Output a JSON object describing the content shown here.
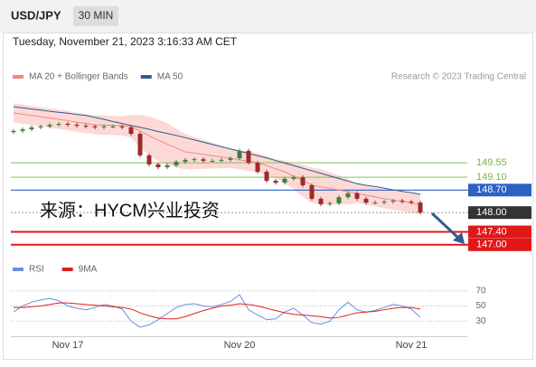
{
  "chart_data": [
    {
      "type": "candlestick",
      "title": "USD/JPY",
      "timeframe": "30 MIN",
      "subtitle": "Tuesday, November 21, 2023 3:16:33 AM CET",
      "credit": "Research © 2023 Trading Central",
      "annotation": "来源：HYCM兴业投资",
      "up_color": "#3f7f3f",
      "down_color": "#9c2a2a",
      "open": [
        150.5,
        150.54,
        150.59,
        150.65,
        150.68,
        150.73,
        150.76,
        150.73,
        150.7,
        150.68,
        150.65,
        150.68,
        150.68,
        150.65,
        150.45,
        149.78,
        149.5,
        149.41,
        149.47,
        149.58,
        149.64,
        149.66,
        149.61,
        149.61,
        149.64,
        149.69,
        149.92,
        149.55,
        149.27,
        148.99,
        148.93,
        149.05,
        149.1,
        148.85,
        148.43,
        148.26,
        148.29,
        148.48,
        148.6,
        148.43,
        148.31,
        148.31,
        148.34,
        148.37,
        148.34,
        148.31
      ],
      "high": [
        150.6,
        150.65,
        150.71,
        150.74,
        150.79,
        150.82,
        150.82,
        150.79,
        150.76,
        150.74,
        150.74,
        150.74,
        150.74,
        150.71,
        150.51,
        149.84,
        149.56,
        149.53,
        149.64,
        149.7,
        149.72,
        149.72,
        149.67,
        149.7,
        149.75,
        149.98,
        149.98,
        149.61,
        149.33,
        149.05,
        149.11,
        149.16,
        149.16,
        148.91,
        148.49,
        148.35,
        148.54,
        148.66,
        148.66,
        148.49,
        148.37,
        148.4,
        148.43,
        148.43,
        148.4,
        148.37
      ],
      "low": [
        150.44,
        150.48,
        150.53,
        150.59,
        150.62,
        150.67,
        150.67,
        150.64,
        150.62,
        150.59,
        150.59,
        150.62,
        150.59,
        150.39,
        149.72,
        149.44,
        149.35,
        149.35,
        149.41,
        149.52,
        149.58,
        149.55,
        149.55,
        149.55,
        149.58,
        149.63,
        149.49,
        149.21,
        148.93,
        148.87,
        148.87,
        148.99,
        148.79,
        148.37,
        148.2,
        148.2,
        148.23,
        148.42,
        148.37,
        148.25,
        148.25,
        148.25,
        148.28,
        148.28,
        148.25,
        147.94
      ],
      "close": [
        150.54,
        150.59,
        150.65,
        150.68,
        150.73,
        150.76,
        150.73,
        150.7,
        150.68,
        150.65,
        150.68,
        150.68,
        150.65,
        150.45,
        149.78,
        149.5,
        149.41,
        149.47,
        149.58,
        149.64,
        149.66,
        149.61,
        149.61,
        149.64,
        149.69,
        149.92,
        149.55,
        149.27,
        148.99,
        148.93,
        149.05,
        149.1,
        148.85,
        148.43,
        148.26,
        148.29,
        148.48,
        148.6,
        148.43,
        148.31,
        148.31,
        148.34,
        148.37,
        148.34,
        148.31,
        148.0
      ],
      "overlays": [
        {
          "name": "MA 20 + Bollinger Bands",
          "color": "#f08a80",
          "band_color": "#fcd9d6",
          "values": [
            151.1,
            151.06,
            151.02,
            150.98,
            150.94,
            150.9,
            150.86,
            150.81,
            150.77,
            150.73,
            150.72,
            150.71,
            150.7,
            150.68,
            150.54,
            150.39,
            150.25,
            150.13,
            150.01,
            149.89,
            149.85,
            149.81,
            149.77,
            149.73,
            149.69,
            149.64,
            149.6,
            149.55,
            149.46,
            149.36,
            149.27,
            149.13,
            148.99,
            148.85,
            148.8,
            148.75,
            148.7,
            148.65,
            148.6,
            148.54,
            148.49,
            148.43,
            148.39,
            148.35,
            148.3,
            148.26
          ],
          "upper": [
            151.4,
            151.36,
            151.32,
            151.28,
            151.24,
            151.2,
            151.16,
            151.11,
            151.07,
            151.03,
            151.02,
            151.01,
            151.0,
            151.03,
            151.04,
            150.99,
            150.9,
            150.78,
            150.61,
            150.44,
            150.35,
            150.26,
            150.17,
            150.08,
            149.99,
            149.94,
            149.9,
            149.85,
            149.76,
            149.66,
            149.62,
            149.53,
            149.49,
            149.4,
            149.35,
            149.25,
            149.15,
            149.05,
            148.9,
            148.84,
            148.79,
            148.73,
            148.69,
            148.65,
            148.6,
            148.56
          ],
          "lower": [
            150.8,
            150.76,
            150.72,
            150.68,
            150.64,
            150.6,
            150.56,
            150.51,
            150.47,
            150.43,
            150.42,
            150.41,
            150.4,
            150.33,
            150.04,
            149.79,
            149.6,
            149.48,
            149.41,
            149.34,
            149.35,
            149.36,
            149.37,
            149.38,
            149.39,
            149.34,
            149.3,
            149.25,
            149.16,
            149.06,
            148.92,
            148.73,
            148.49,
            148.3,
            148.25,
            148.25,
            148.25,
            148.25,
            148.3,
            148.24,
            148.19,
            148.13,
            148.09,
            148.05,
            148.0,
            147.96
          ]
        },
        {
          "name": "MA 50",
          "color": "#2f5b8e",
          "values": [
            151.29,
            151.26,
            151.22,
            151.19,
            151.15,
            151.12,
            151.09,
            151.05,
            151.02,
            150.96,
            150.9,
            150.83,
            150.77,
            150.71,
            150.65,
            150.59,
            150.52,
            150.46,
            150.4,
            150.33,
            150.26,
            150.19,
            150.12,
            150.05,
            149.98,
            149.91,
            149.84,
            149.77,
            149.7,
            149.62,
            149.54,
            149.46,
            149.38,
            149.3,
            149.22,
            149.14,
            149.06,
            148.98,
            148.9,
            148.85,
            148.81,
            148.76,
            148.71,
            148.66,
            148.62,
            148.57
          ]
        }
      ],
      "ylim": [
        146.6,
        151.8
      ],
      "levels": [
        {
          "value": 149.55,
          "label": "149.55",
          "color": "#7ab648",
          "boxed": false,
          "line": "solid",
          "width": 0.8
        },
        {
          "value": 149.1,
          "label": "149.10",
          "color": "#7ab648",
          "boxed": false,
          "line": "solid",
          "width": 0.8
        },
        {
          "value": 148.7,
          "label": "148.70",
          "color": "#2b62c4",
          "boxed": true,
          "line": "solid",
          "width": 1.2
        },
        {
          "value": 148.0,
          "label": "148.00",
          "color": "#333333",
          "boxed": true,
          "line": "dashed",
          "width": 0.8
        },
        {
          "value": 147.4,
          "label": "147.40",
          "color": "#e01818",
          "boxed": true,
          "line": "solid",
          "width": 2
        },
        {
          "value": 147.0,
          "label": "147.00",
          "color": "#e01818",
          "boxed": true,
          "line": "solid",
          "width": 2
        }
      ]
    },
    {
      "type": "line",
      "categories": [
        null,
        null,
        null,
        null,
        null,
        null,
        "Nov 17",
        null,
        null,
        null,
        null,
        null,
        null,
        null,
        null,
        null,
        null,
        null,
        null,
        null,
        null,
        null,
        null,
        null,
        null,
        "Nov 20",
        null,
        null,
        null,
        null,
        null,
        null,
        null,
        null,
        null,
        null,
        null,
        null,
        null,
        null,
        null,
        null,
        null,
        null,
        "Nov 21",
        null
      ],
      "series": [
        {
          "name": "RSI",
          "color": "#6a8fe0",
          "values": [
            42,
            50,
            55,
            58,
            60,
            57,
            50,
            47,
            45,
            48,
            52,
            50,
            46,
            30,
            22,
            25,
            32,
            40,
            48,
            52,
            53,
            50,
            49,
            52,
            56,
            65,
            45,
            38,
            32,
            33,
            42,
            47,
            38,
            28,
            26,
            30,
            45,
            55,
            45,
            42,
            44,
            48,
            52,
            50,
            46,
            35
          ]
        },
        {
          "name": "9MA",
          "color": "#e02020",
          "values": [
            48,
            48,
            49,
            50,
            52,
            54,
            54,
            53,
            52,
            51,
            50,
            49,
            48,
            46,
            41,
            37,
            34,
            33,
            33,
            36,
            40,
            44,
            47,
            50,
            51,
            53,
            52,
            50,
            47,
            44,
            41,
            39,
            38,
            37,
            36,
            34,
            35,
            38,
            41,
            42,
            43,
            45,
            47,
            48,
            48,
            46
          ]
        }
      ],
      "ylim": [
        10,
        90
      ],
      "yticks": [
        30,
        50,
        70
      ],
      "grid": true
    }
  ]
}
